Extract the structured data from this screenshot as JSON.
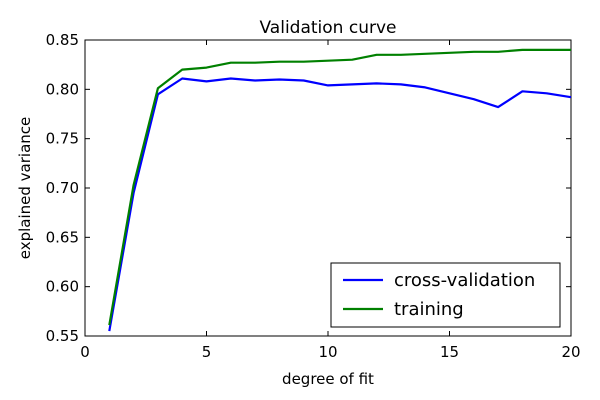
{
  "chart_data": {
    "type": "line",
    "title": "Validation curve",
    "xlabel": "degree of fit",
    "ylabel": "explained variance",
    "xlim": [
      0,
      20
    ],
    "ylim": [
      0.55,
      0.85
    ],
    "x_ticks": [
      0,
      5,
      10,
      15,
      20
    ],
    "y_ticks": [
      0.55,
      0.6,
      0.65,
      0.7,
      0.75,
      0.8,
      0.85
    ],
    "x_tick_labels": [
      "0",
      "5",
      "10",
      "15",
      "20"
    ],
    "y_tick_labels": [
      "0.55",
      "0.60",
      "0.65",
      "0.70",
      "0.75",
      "0.80",
      "0.85"
    ],
    "grid": false,
    "legend_position": "lower-right",
    "x": [
      1,
      2,
      3,
      4,
      5,
      6,
      7,
      8,
      9,
      10,
      11,
      12,
      13,
      14,
      15,
      16,
      17,
      18,
      19,
      20
    ],
    "series": [
      {
        "name": "cross-validation",
        "color": "#0000ff",
        "values": [
          0.555,
          0.695,
          0.795,
          0.811,
          0.808,
          0.811,
          0.809,
          0.81,
          0.809,
          0.804,
          0.805,
          0.806,
          0.805,
          0.802,
          0.796,
          0.79,
          0.782,
          0.798,
          0.796,
          0.792
        ]
      },
      {
        "name": "training",
        "color": "#008000",
        "values": [
          0.561,
          0.703,
          0.801,
          0.82,
          0.822,
          0.827,
          0.827,
          0.828,
          0.828,
          0.829,
          0.83,
          0.835,
          0.835,
          0.836,
          0.837,
          0.838,
          0.838,
          0.84,
          0.84,
          0.84
        ]
      }
    ]
  }
}
